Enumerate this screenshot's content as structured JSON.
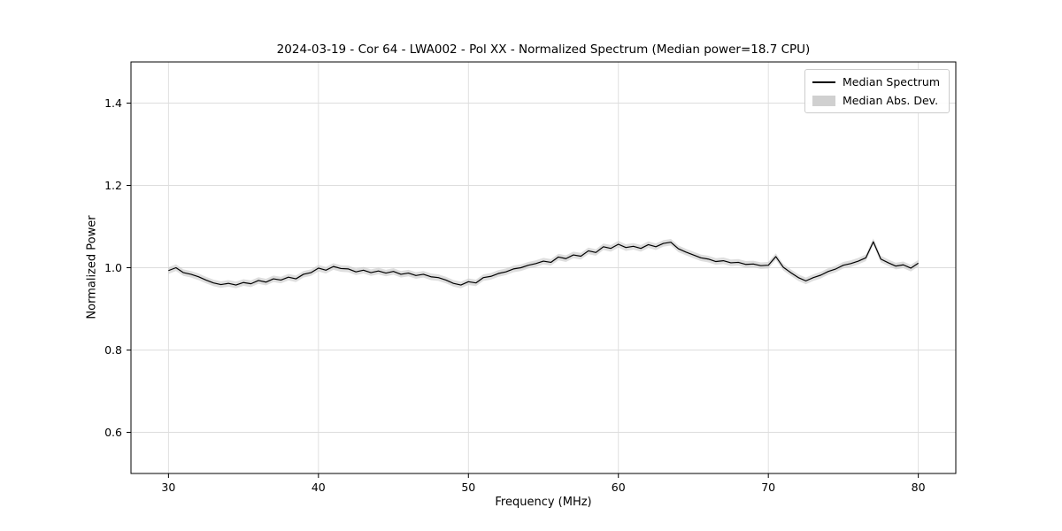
{
  "figure": {
    "title": "2024-03-19 - Cor 64 - LWA002 - Pol XX - Normalized Spectrum (Median power=18.7 CPU)",
    "xlabel": "Frequency (MHz)",
    "ylabel": "Normalized Power",
    "legend": {
      "items": [
        {
          "label": "Median Spectrum",
          "type": "line",
          "color": "#000000"
        },
        {
          "label": "Median Abs. Dev.",
          "type": "patch",
          "color": "#c8c8c8"
        }
      ]
    }
  },
  "chart_data": {
    "type": "line",
    "title": "2024-03-19 - Cor 64 - LWA002 - Pol XX - Normalized Spectrum (Median power=18.7 CPU)",
    "xlabel": "Frequency (MHz)",
    "ylabel": "Normalized Power",
    "xlim": [
      27.5,
      82.5
    ],
    "ylim": [
      0.5,
      1.5
    ],
    "xticks": [
      30,
      40,
      50,
      60,
      70,
      80
    ],
    "xtick_labels": [
      "30",
      "40",
      "50",
      "60",
      "70",
      "80"
    ],
    "yticks": [
      0.6,
      0.8,
      1.0,
      1.2,
      1.4
    ],
    "ytick_labels": [
      "0.6",
      "0.8",
      "1.0",
      "1.2",
      "1.4"
    ],
    "grid": true,
    "legend_position": "upper right",
    "line_color": "#000000",
    "band_color": "#c8c8c8",
    "series": [
      {
        "name": "Median Spectrum",
        "x_start": 30.0,
        "x_step": 0.5,
        "values": [
          0.993,
          1.0,
          0.988,
          0.984,
          0.978,
          0.97,
          0.963,
          0.959,
          0.962,
          0.958,
          0.964,
          0.961,
          0.969,
          0.965,
          0.973,
          0.97,
          0.977,
          0.973,
          0.984,
          0.988,
          0.999,
          0.994,
          1.003,
          0.998,
          0.997,
          0.99,
          0.994,
          0.988,
          0.992,
          0.987,
          0.991,
          0.984,
          0.987,
          0.981,
          0.984,
          0.978,
          0.976,
          0.97,
          0.962,
          0.958,
          0.966,
          0.963,
          0.976,
          0.979,
          0.986,
          0.99,
          0.997,
          1.0,
          1.006,
          1.01,
          1.016,
          1.013,
          1.026,
          1.022,
          1.031,
          1.028,
          1.041,
          1.037,
          1.051,
          1.047,
          1.057,
          1.049,
          1.052,
          1.047,
          1.056,
          1.051,
          1.059,
          1.062,
          1.046,
          1.038,
          1.031,
          1.024,
          1.021,
          1.015,
          1.017,
          1.012,
          1.013,
          1.008,
          1.009,
          1.005,
          1.006,
          1.027,
          1.001,
          0.988,
          0.976,
          0.968,
          0.976,
          0.982,
          0.991,
          0.997,
          1.006,
          1.01,
          1.016,
          1.024,
          1.063,
          1.021,
          1.012,
          1.004,
          1.007,
          0.999,
          1.011
        ]
      },
      {
        "name": "Median Abs. Dev.",
        "band_halfwidth": 0.008
      }
    ]
  }
}
